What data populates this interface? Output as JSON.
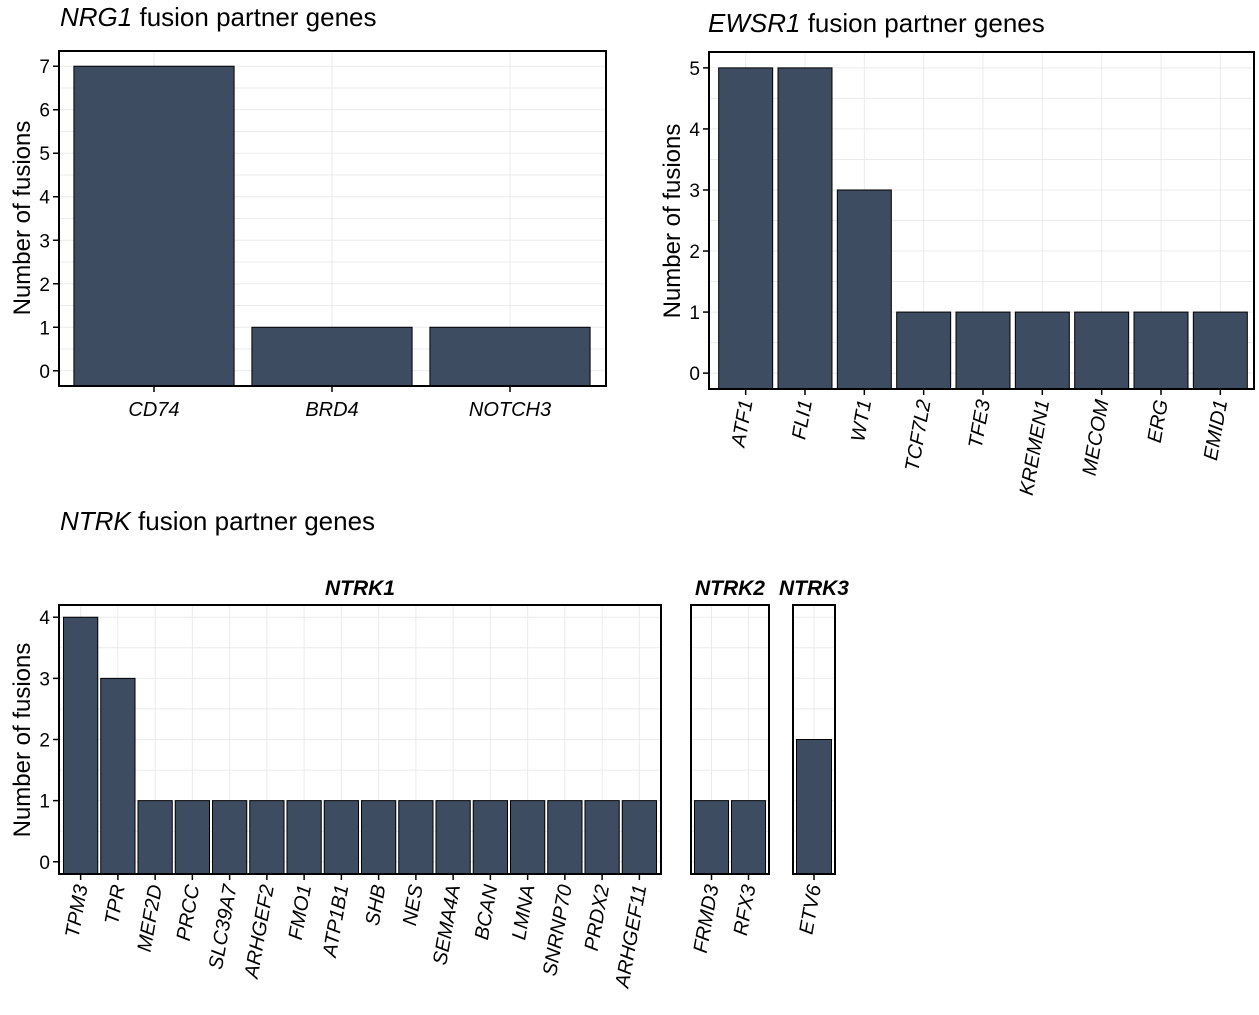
{
  "figure": {
    "nrg1_title": {
      "gene": "NRG1",
      "rest": " fusion partner genes"
    },
    "ewsr1_title": {
      "gene": "EWSR1",
      "rest": " fusion partner genes"
    },
    "ntrk_title": {
      "gene": "NTRK",
      "rest": " fusion partner genes"
    }
  },
  "chart_data": [
    {
      "type": "bar",
      "title": "NRG1 fusion partner genes",
      "ylabel": "Number of fusions",
      "ylim": [
        0,
        7
      ],
      "yticks": [
        0,
        1,
        2,
        3,
        4,
        5,
        6,
        7
      ],
      "categories": [
        "CD74",
        "BRD4",
        "NOTCH3"
      ],
      "values": [
        7,
        1,
        1
      ],
      "grid": true,
      "bar_color": "#3e4c61"
    },
    {
      "type": "bar",
      "title": "EWSR1 fusion partner genes",
      "ylabel": "Number of fusions",
      "ylim": [
        0,
        5
      ],
      "yticks": [
        0,
        1,
        2,
        3,
        4,
        5
      ],
      "categories": [
        "ATF1",
        "FLI1",
        "WT1",
        "TCF7L2",
        "TFE3",
        "KREMEN1",
        "MECOM",
        "ERG",
        "EMID1"
      ],
      "values": [
        5,
        5,
        3,
        1,
        1,
        1,
        1,
        1,
        1
      ],
      "grid": true,
      "bar_color": "#3e4c61"
    },
    {
      "type": "bar",
      "title": "NTRK fusion partner genes",
      "ylabel": "Number of fusions",
      "ylim": [
        0,
        4
      ],
      "yticks": [
        0,
        1,
        2,
        3,
        4
      ],
      "grid": true,
      "bar_color": "#3e4c61",
      "facets": [
        {
          "name": "NTRK1",
          "categories": [
            "TPM3",
            "TPR",
            "MEF2D",
            "PRCC",
            "SLC39A7",
            "ARHGEF2",
            "FMO1",
            "ATP1B1",
            "SHB",
            "NES",
            "SEMA4A",
            "BCAN",
            "LMNA",
            "SNRNP70",
            "PRDX2",
            "ARHGEF11"
          ],
          "values": [
            4,
            3,
            1,
            1,
            1,
            1,
            1,
            1,
            1,
            1,
            1,
            1,
            1,
            1,
            1,
            1
          ]
        },
        {
          "name": "NTRK2",
          "categories": [
            "FRMD3",
            "RFX3"
          ],
          "values": [
            1,
            1
          ]
        },
        {
          "name": "NTRK3",
          "categories": [
            "ETV6"
          ],
          "values": [
            2
          ]
        }
      ]
    }
  ]
}
